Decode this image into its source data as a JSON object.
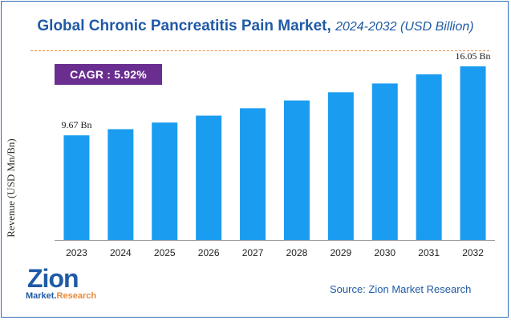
{
  "header": {
    "title": "Global Chronic Pancreatitis Pain Market,",
    "subtitle": "2024-2032 (USD Billion)"
  },
  "cagr_badge": {
    "label": "CAGR :",
    "value": "5.92%"
  },
  "chart_data": {
    "type": "bar",
    "categories": [
      "2023",
      "2024",
      "2025",
      "2026",
      "2027",
      "2028",
      "2029",
      "2030",
      "2031",
      "2032"
    ],
    "values": [
      9.67,
      10.24,
      10.85,
      11.49,
      12.17,
      12.89,
      13.65,
      14.46,
      15.31,
      16.05
    ],
    "data_labels": [
      {
        "category": "2023",
        "text": "9.67 Bn"
      },
      {
        "category": "2032",
        "text": "16.05 Bn"
      }
    ],
    "ylabel": "Revenue (USD Mn/Bn)",
    "xlabel": "",
    "ylim": [
      0,
      17
    ],
    "bar_color": "#1a9cf0",
    "grid": false
  },
  "source": "Source: Zion Market Research",
  "logo": {
    "word": "Zion",
    "tag_part1": "Market.",
    "tag_part2": "Research"
  },
  "colors": {
    "title": "#1f5aa6",
    "badge": "#6a2e90",
    "divider": "#e8893a"
  }
}
